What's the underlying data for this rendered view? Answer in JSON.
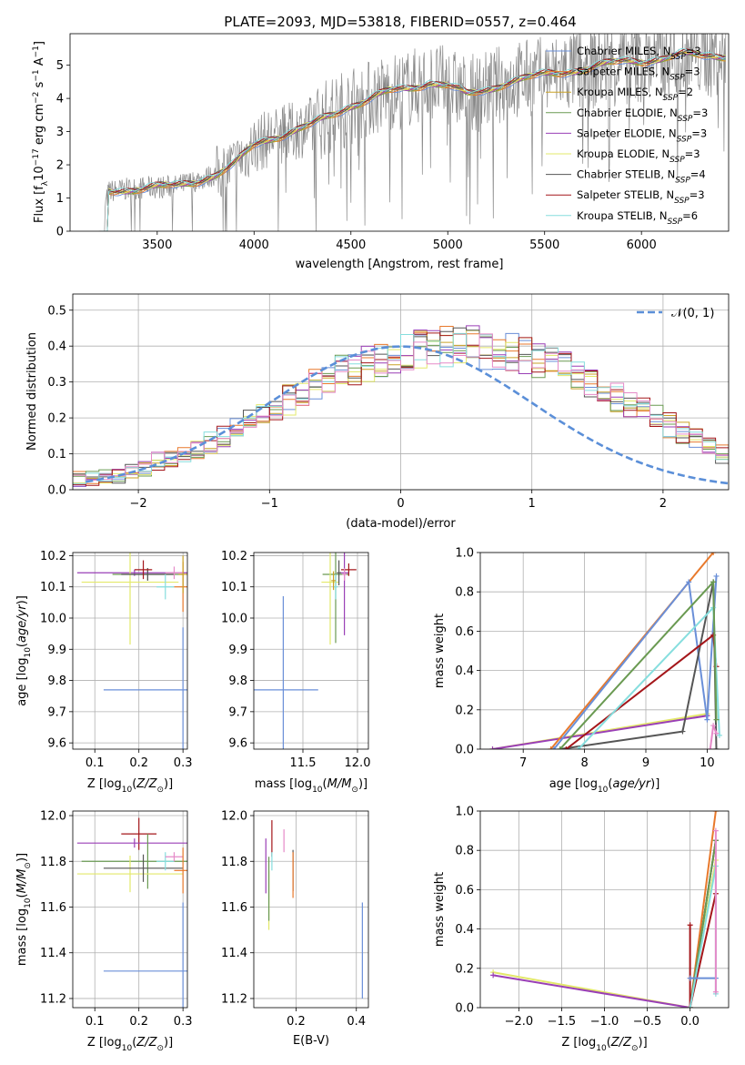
{
  "colors": {
    "Chabrier MILES": "#6a8fd8",
    "Salpeter MILES": "#e8792c",
    "Kroupa MILES": "#c9a227",
    "Chabrier ELODIE": "#6a9a52",
    "Salpeter ELODIE": "#9a3fb6",
    "Kroupa ELODIE": "#e3e86a",
    "Chabrier STELIB": "#555555",
    "Salpeter STELIB": "#a4161a",
    "Kroupa STELIB": "#86dede",
    "extra_pink": "#e58ac8",
    "data": "#888888",
    "normal": "#5b8fd8"
  },
  "chart_data": [
    {
      "id": "spectrum",
      "type": "line",
      "title": "PLATE=2093, MJD=53818, FIBERID=0557, z=0.464",
      "xlabel": "wavelength [Angstrom, rest frame]",
      "ylabel": "Flux [f",
      "xlim": [
        3050,
        6450
      ],
      "ylim": [
        0,
        5.95
      ],
      "xticks": [
        3500,
        4000,
        4500,
        5000,
        5500,
        6000
      ],
      "yticks": [
        0,
        1,
        2,
        3,
        4,
        5
      ],
      "grid": false,
      "legend_position": "top-right",
      "continuum": {
        "x": [
          3200,
          3250,
          3400,
          3600,
          3800,
          3900,
          4000,
          4100,
          4200,
          4300,
          4400,
          4500,
          4600,
          4700,
          4800,
          4900,
          5000,
          5100,
          5200,
          5300,
          5400,
          5500,
          5600,
          5700,
          5800,
          5900,
          6000,
          6100,
          6200
        ],
        "y": [
          0,
          1.2,
          1.3,
          1.35,
          1.7,
          2.0,
          2.6,
          2.85,
          3.0,
          3.2,
          3.5,
          3.8,
          4.0,
          4.2,
          4.3,
          4.5,
          4.4,
          4.1,
          4.25,
          4.5,
          4.6,
          4.7,
          4.8,
          4.9,
          5.0,
          5.1,
          5.15,
          5.2,
          5.3
        ]
      },
      "series": [
        {
          "name": "Chabrier MILES",
          "nssp": "3"
        },
        {
          "name": "Salpeter MILES",
          "nssp": "3"
        },
        {
          "name": "Kroupa MILES",
          "nssp": "2"
        },
        {
          "name": "Chabrier ELODIE",
          "nssp": "3"
        },
        {
          "name": "Salpeter ELODIE",
          "nssp": "3"
        },
        {
          "name": "Kroupa ELODIE",
          "nssp": "3"
        },
        {
          "name": "Chabrier STELIB",
          "nssp": "4"
        },
        {
          "name": "Salpeter STELIB",
          "nssp": "3"
        },
        {
          "name": "Kroupa STELIB",
          "nssp": "6"
        }
      ]
    },
    {
      "id": "residuals",
      "type": "histogram",
      "xlabel": "(data-model)/error",
      "ylabel": "Normed distribution",
      "xlim": [
        -2.5,
        2.5
      ],
      "ylim": [
        0,
        0.545
      ],
      "xticks": [
        -2,
        -1,
        0,
        1,
        2
      ],
      "yticks": [
        0,
        0.1,
        0.2,
        0.3,
        0.4,
        0.5
      ],
      "ytick_labels": [
        "0.0",
        "0.1",
        "0.2",
        "0.3",
        "0.4",
        "0.5"
      ],
      "xtick_labels": [
        "−2",
        "−1",
        "0",
        "1",
        "2"
      ],
      "grid": true,
      "legend_label": "𝒩(0, 1)",
      "bin_width": 0.1,
      "bin_start": -2.5,
      "base_heights": [
        0.03,
        0.03,
        0.035,
        0.04,
        0.05,
        0.06,
        0.08,
        0.09,
        0.1,
        0.11,
        0.13,
        0.15,
        0.17,
        0.19,
        0.21,
        0.23,
        0.25,
        0.27,
        0.29,
        0.31,
        0.33,
        0.34,
        0.35,
        0.36,
        0.37,
        0.38,
        0.39,
        0.39,
        0.4,
        0.4,
        0.4,
        0.39,
        0.39,
        0.38,
        0.37,
        0.36,
        0.35,
        0.34,
        0.32,
        0.3,
        0.28,
        0.26,
        0.24,
        0.22,
        0.2,
        0.18,
        0.16,
        0.14,
        0.12,
        0.1,
        0.09,
        0.08,
        0.07,
        0.06,
        0.05,
        0.045,
        0.04,
        0.035,
        0.03,
        0.03
      ]
    },
    {
      "id": "age_vs_Z",
      "type": "scatter",
      "xlabel": "Z [log",
      "ylabel": "age  [log",
      "xlim": [
        0.05,
        0.31
      ],
      "ylim": [
        9.58,
        10.21
      ],
      "xticks": [
        0.1,
        0.2,
        0.3
      ],
      "xtick_labels": [
        "0.1",
        "0.2",
        "0.3"
      ],
      "yticks": [
        9.6,
        9.7,
        9.8,
        9.9,
        10.0,
        10.1,
        10.2
      ],
      "ytick_labels": [
        "9.6",
        "9.7",
        "9.8",
        "9.9",
        "10.0",
        "10.1",
        "10.2"
      ],
      "points": [
        {
          "c": "Chabrier MILES",
          "x": 0.3,
          "y": 9.77,
          "xerr": 0.18,
          "yerr": 0.2
        },
        {
          "c": "Salpeter MILES",
          "x": 0.3,
          "y": 10.1,
          "xerr": 0.02,
          "yerr": 0.08
        },
        {
          "c": "Chabrier ELODIE",
          "x": 0.22,
          "y": 10.14,
          "xerr": 0.08,
          "yerr": 0.02
        },
        {
          "c": "Salpeter ELODIE",
          "x": 0.19,
          "y": 10.145,
          "xerr": 0.13,
          "yerr": 0.01
        },
        {
          "c": "Kroupa ELODIE",
          "x": 0.18,
          "y": 10.115,
          "xerr": 0.11,
          "yerr": 0.2
        },
        {
          "c": "Chabrier STELIB",
          "x": 0.22,
          "y": 10.14,
          "xerr": 0.06,
          "yerr": 0.02
        },
        {
          "c": "Salpeter STELIB",
          "x": 0.21,
          "y": 10.155,
          "xerr": 0.02,
          "yerr": 0.03
        },
        {
          "c": "Kroupa STELIB",
          "x": 0.26,
          "y": 10.1,
          "xerr": 0.02,
          "yerr": 0.04
        },
        {
          "c": "extra_pink",
          "x": 0.28,
          "y": 10.145,
          "xerr": 0.02,
          "yerr": 0.02
        },
        {
          "c": "Kroupa MILES",
          "x": 0.3,
          "y": 10.14,
          "xerr": 0.01,
          "yerr": 0.06
        }
      ]
    },
    {
      "id": "age_vs_mass",
      "type": "scatter",
      "xlabel": "mass [log",
      "ylabel": "",
      "xlim": [
        11.05,
        12.1
      ],
      "ylim": [
        9.58,
        10.21
      ],
      "xticks": [
        11.5,
        12.0
      ],
      "xtick_labels": [
        "11.5",
        "12.0"
      ],
      "yticks": [
        9.6,
        9.7,
        9.8,
        9.9,
        10.0,
        10.1,
        10.2
      ],
      "ytick_labels": [
        "9.6",
        "9.7",
        "9.8",
        "9.9",
        "10.0",
        "10.1",
        "10.2"
      ],
      "points": [
        {
          "c": "Chabrier MILES",
          "x": 11.32,
          "y": 9.77,
          "xerr": 0.32,
          "yerr": 0.3
        },
        {
          "c": "Chabrier ELODIE",
          "x": 11.8,
          "y": 10.14,
          "xerr": 0.12,
          "yerr": 0.22
        },
        {
          "c": "Kroupa ELODIE",
          "x": 11.75,
          "y": 10.115,
          "xerr": 0.08,
          "yerr": 0.2
        },
        {
          "c": "Salpeter ELODIE",
          "x": 11.88,
          "y": 10.145,
          "xerr": 0.04,
          "yerr": 0.2
        },
        {
          "c": "Salpeter STELIB",
          "x": 11.92,
          "y": 10.155,
          "xerr": 0.07,
          "yerr": 0.02
        },
        {
          "c": "Kroupa STELIB",
          "x": 11.8,
          "y": 10.1,
          "xerr": 0.02,
          "yerr": 0.04
        },
        {
          "c": "Chabrier STELIB",
          "x": 11.83,
          "y": 10.145,
          "xerr": 0.02,
          "yerr": 0.04
        },
        {
          "c": "extra_pink",
          "x": 11.88,
          "y": 10.14,
          "xerr": 0.02,
          "yerr": 0.02
        },
        {
          "c": "Kroupa MILES",
          "x": 11.78,
          "y": 10.12,
          "xerr": 0.02,
          "yerr": 0.03
        }
      ]
    },
    {
      "id": "weight_vs_age",
      "type": "line",
      "xlabel": "age  [log",
      "ylabel": "mass weight",
      "xlim": [
        6.3,
        10.35
      ],
      "ylim": [
        0,
        1.0
      ],
      "xticks": [
        7,
        8,
        9,
        10
      ],
      "xtick_labels": [
        "7",
        "8",
        "9",
        "10"
      ],
      "yticks": [
        0,
        0.2,
        0.4,
        0.6,
        0.8,
        1.0
      ],
      "ytick_labels": [
        "0.0",
        "0.2",
        "0.4",
        "0.6",
        "0.8",
        "1.0"
      ],
      "lines": [
        {
          "c": "Kroupa ELODIE",
          "x": [
            6.5,
            10.0
          ],
          "y": [
            0.0,
            0.18
          ]
        },
        {
          "c": "Salpeter ELODIE",
          "x": [
            6.5,
            10.0
          ],
          "y": [
            0.0,
            0.17
          ]
        },
        {
          "c": "Salpeter MILES",
          "x": [
            7.45,
            10.1
          ],
          "y": [
            0.0,
            1.0
          ]
        },
        {
          "c": "Chabrier MILES",
          "x": [
            7.5,
            9.7,
            10.0,
            10.15
          ],
          "y": [
            0.0,
            0.85,
            0.15,
            0.88
          ]
        },
        {
          "c": "Chabrier STELIB",
          "x": [
            7.6,
            9.6,
            10.1,
            10.15
          ],
          "y": [
            0.0,
            0.09,
            0.85,
            0.0
          ]
        },
        {
          "c": "Salpeter STELIB",
          "x": [
            7.7,
            10.1,
            10.15
          ],
          "y": [
            0.0,
            0.58,
            0.42
          ]
        },
        {
          "c": "Kroupa STELIB",
          "x": [
            7.9,
            10.1,
            10.2
          ],
          "y": [
            0.0,
            0.72,
            0.07
          ]
        },
        {
          "c": "Chabrier ELODIE",
          "x": [
            7.6,
            10.1,
            10.15
          ],
          "y": [
            0.0,
            0.85,
            0.15
          ]
        },
        {
          "c": "extra_pink",
          "x": [
            10.05,
            10.1,
            10.15
          ],
          "y": [
            0.0,
            0.12,
            0.08
          ]
        }
      ]
    },
    {
      "id": "mass_vs_Z",
      "type": "scatter",
      "xlabel": "Z [log",
      "ylabel": "mass [log",
      "xlim": [
        0.05,
        0.31
      ],
      "ylim": [
        11.16,
        12.02
      ],
      "xticks": [
        0.1,
        0.2,
        0.3
      ],
      "xtick_labels": [
        "0.1",
        "0.2",
        "0.3"
      ],
      "yticks": [
        11.2,
        11.4,
        11.6,
        11.8,
        12.0
      ],
      "ytick_labels": [
        "11.2",
        "11.4",
        "11.6",
        "11.8",
        "12.0"
      ],
      "points": [
        {
          "c": "Chabrier MILES",
          "x": 0.3,
          "y": 11.32,
          "xerr": 0.18,
          "yerr": 0.3
        },
        {
          "c": "Salpeter STELIB",
          "x": 0.2,
          "y": 11.92,
          "xerr": 0.04,
          "yerr": 0.07
        },
        {
          "c": "Salpeter ELODIE",
          "x": 0.19,
          "y": 11.88,
          "xerr": 0.13,
          "yerr": 0.02
        },
        {
          "c": "Chabrier ELODIE",
          "x": 0.22,
          "y": 11.8,
          "xerr": 0.15,
          "yerr": 0.12
        },
        {
          "c": "Kroupa ELODIE",
          "x": 0.18,
          "y": 11.745,
          "xerr": 0.12,
          "yerr": 0.08
        },
        {
          "c": "Chabrier STELIB",
          "x": 0.21,
          "y": 11.77,
          "xerr": 0.09,
          "yerr": 0.06
        },
        {
          "c": "Kroupa STELIB",
          "x": 0.26,
          "y": 11.8,
          "xerr": 0.02,
          "yerr": 0.04
        },
        {
          "c": "extra_pink",
          "x": 0.28,
          "y": 11.82,
          "xerr": 0.02,
          "yerr": 0.02
        },
        {
          "c": "Salpeter MILES",
          "x": 0.3,
          "y": 11.76,
          "xerr": 0.02,
          "yerr": 0.1
        }
      ]
    },
    {
      "id": "mass_vs_ebv",
      "type": "scatter",
      "xlabel": "E(B-V)",
      "ylabel": "",
      "xlim": [
        0.06,
        0.44
      ],
      "ylim": [
        11.16,
        12.02
      ],
      "xticks": [
        0.2,
        0.4
      ],
      "xtick_labels": [
        "0.2",
        "0.4"
      ],
      "yticks": [
        11.2,
        11.4,
        11.6,
        11.8,
        12.0
      ],
      "ytick_labels": [
        "11.2",
        "11.4",
        "11.6",
        "11.8",
        "12.0"
      ],
      "points": [
        {
          "c": "Chabrier MILES",
          "x": 0.42,
          "y": 11.41,
          "xerr": 0.0,
          "yerr": 0.21
        },
        {
          "c": "Salpeter ELODIE",
          "x": 0.1,
          "y": 11.78,
          "xerr": 0.0,
          "yerr": 0.12
        },
        {
          "c": "Kroupa ELODIE",
          "x": 0.11,
          "y": 11.63,
          "xerr": 0.0,
          "yerr": 0.13
        },
        {
          "c": "Chabrier ELODIE",
          "x": 0.11,
          "y": 11.68,
          "xerr": 0.0,
          "yerr": 0.14
        },
        {
          "c": "Salpeter STELIB",
          "x": 0.12,
          "y": 11.9,
          "xerr": 0.0,
          "yerr": 0.08
        },
        {
          "c": "Kroupa STELIB",
          "x": 0.12,
          "y": 11.8,
          "xerr": 0.0,
          "yerr": 0.04
        },
        {
          "c": "extra_pink",
          "x": 0.16,
          "y": 11.89,
          "xerr": 0.0,
          "yerr": 0.05
        },
        {
          "c": "Chabrier STELIB",
          "x": 0.19,
          "y": 11.76,
          "xerr": 0.0,
          "yerr": 0.09
        },
        {
          "c": "Salpeter MILES",
          "x": 0.19,
          "y": 11.74,
          "xerr": 0.0,
          "yerr": 0.1
        }
      ]
    },
    {
      "id": "weight_vs_Z",
      "type": "line",
      "xlabel": "Z [log",
      "ylabel": "mass weight",
      "xlim": [
        -2.45,
        0.45
      ],
      "ylim": [
        0,
        1.0
      ],
      "xticks": [
        -2.0,
        -1.5,
        -1.0,
        -0.5,
        0.0
      ],
      "xtick_labels": [
        "−2.0",
        "−1.5",
        "−1.0",
        "−0.5",
        "0.0"
      ],
      "yticks": [
        0,
        0.2,
        0.4,
        0.6,
        0.8,
        1.0
      ],
      "ytick_labels": [
        "0.0",
        "0.2",
        "0.4",
        "0.6",
        "0.8",
        "1.0"
      ],
      "lines": [
        {
          "c": "Kroupa ELODIE",
          "x": [
            -2.3,
            0.0,
            0.3
          ],
          "y": [
            0.18,
            0.0,
            0.75
          ]
        },
        {
          "c": "Salpeter ELODIE",
          "x": [
            -2.3,
            0.0,
            0.3
          ],
          "y": [
            0.165,
            0.0,
            0.85
          ]
        },
        {
          "c": "Salpeter MILES",
          "x": [
            0.0,
            0.3
          ],
          "y": [
            0.0,
            1.0
          ]
        },
        {
          "c": "Chabrier STELIB",
          "x": [
            0.0,
            0.3
          ],
          "y": [
            0.0,
            0.85
          ]
        },
        {
          "c": "Chabrier ELODIE",
          "x": [
            0.0,
            0.3
          ],
          "y": [
            0.0,
            0.85
          ]
        },
        {
          "c": "Salpeter STELIB",
          "x": [
            0.0,
            0.0,
            0.3
          ],
          "y": [
            0.42,
            0.0,
            0.58
          ]
        },
        {
          "c": "Kroupa STELIB",
          "x": [
            0.0,
            0.3,
            0.3
          ],
          "y": [
            0.0,
            0.72,
            0.07
          ]
        },
        {
          "c": "Chabrier MILES",
          "x": [
            0.0,
            0.3
          ],
          "y": [
            0.15,
            0.15
          ]
        },
        {
          "c": "extra_pink",
          "x": [
            0.3,
            0.3
          ],
          "y": [
            0.08,
            0.9
          ]
        }
      ]
    }
  ]
}
